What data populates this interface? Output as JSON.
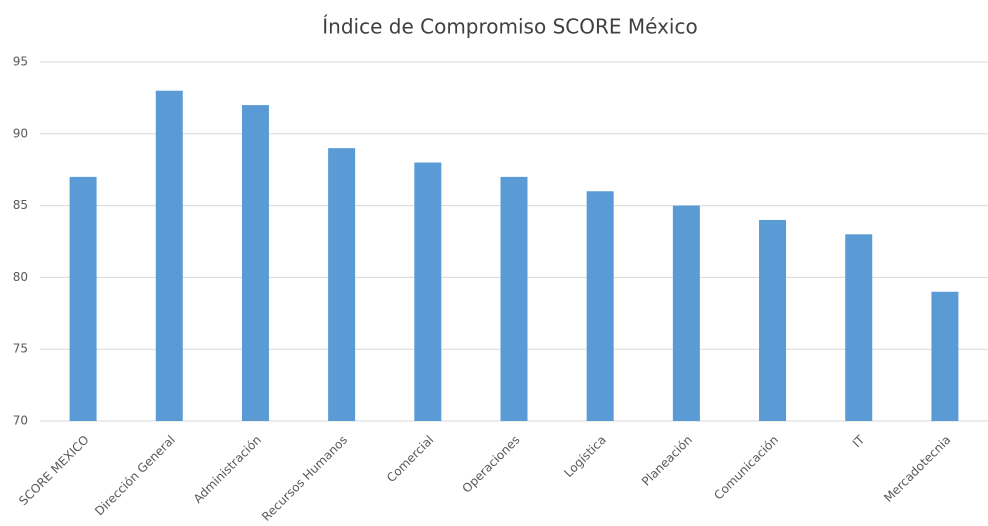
{
  "chart_data": {
    "type": "bar",
    "title": "Índice de Compromiso SCORE México",
    "categories": [
      "SCORE MEXICO",
      "Dirección General",
      "Administración",
      "Recursos Humanos",
      "Comercial",
      "Operaciones",
      "Logística",
      "Planeación",
      "Comunicación",
      "IT",
      "Mercadotecnia"
    ],
    "values": [
      87,
      93,
      92,
      89,
      88,
      87,
      86,
      85,
      84,
      83,
      79
    ],
    "color": "#5b9bd5",
    "ylim": [
      70,
      95
    ],
    "yticks": [
      70,
      75,
      80,
      85,
      90,
      95
    ],
    "grid": true
  }
}
